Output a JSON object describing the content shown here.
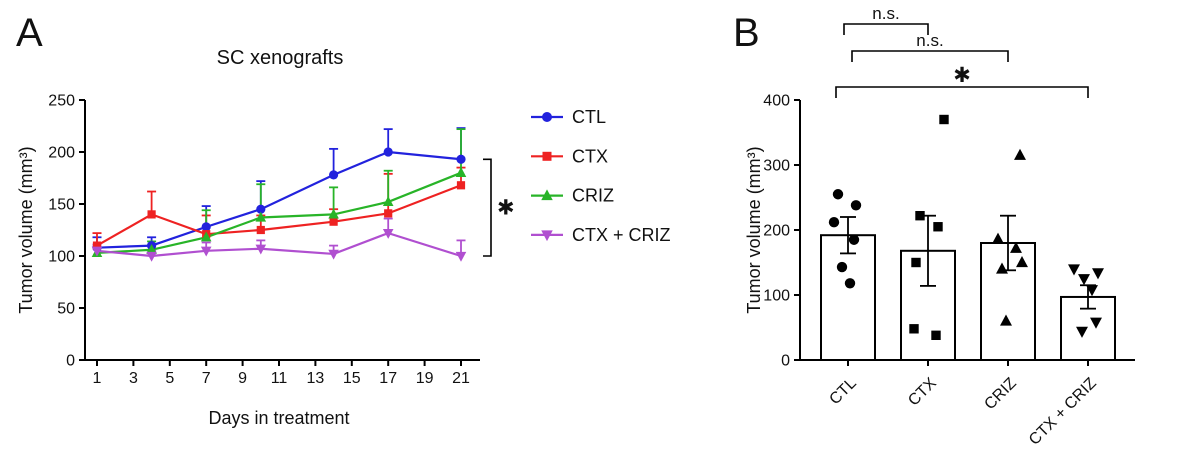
{
  "figure": {
    "panels": [
      {
        "label": "A"
      },
      {
        "label": "B"
      }
    ]
  },
  "chart_data": [
    {
      "type": "line",
      "title": "SC xenografts",
      "xlabel": "Days in treatment",
      "ylabel": "Tumor volume (mm³)",
      "x": [
        1,
        4,
        7,
        10,
        14,
        17,
        21
      ],
      "x_ticks": [
        1,
        3,
        5,
        7,
        9,
        11,
        13,
        15,
        17,
        19,
        21
      ],
      "ylim": [
        0,
        250
      ],
      "y_ticks": [
        0,
        50,
        100,
        150,
        200,
        250
      ],
      "grid": false,
      "legend_position": "right",
      "series": [
        {
          "name": "CTL",
          "color": "#2222dd",
          "marker": "circle",
          "values": [
            108,
            110,
            128,
            145,
            178,
            200,
            193
          ],
          "errors": [
            10,
            8,
            20,
            27,
            25,
            22,
            30
          ]
        },
        {
          "name": "CTX",
          "color": "#ee2222",
          "marker": "square",
          "values": [
            110,
            140,
            121,
            125,
            133,
            141,
            168
          ],
          "errors": [
            12,
            22,
            18,
            14,
            12,
            38,
            17
          ]
        },
        {
          "name": "CRIZ",
          "color": "#28b428",
          "marker": "triangle-up",
          "values": [
            103,
            106,
            118,
            137,
            140,
            152,
            180
          ],
          "errors": [
            5,
            8,
            26,
            32,
            26,
            30,
            42
          ]
        },
        {
          "name": "CTX + CRIZ",
          "color": "#b04fd0",
          "marker": "triangle-down",
          "values": [
            105,
            100,
            105,
            107,
            102,
            122,
            100
          ],
          "errors": [
            6,
            5,
            8,
            8,
            8,
            14,
            15
          ]
        }
      ],
      "significance": {
        "label": "✱",
        "from": "CTL",
        "to": "CTX + CRIZ"
      }
    },
    {
      "type": "bar",
      "title": "",
      "xlabel": "",
      "ylabel": "Tumor volume (mm³)",
      "categories": [
        "CTL",
        "CTX",
        "CRIZ",
        "CTX + CRIZ"
      ],
      "ylim": [
        0,
        400
      ],
      "y_ticks": [
        0,
        100,
        200,
        300,
        400
      ],
      "bar_fill": "#ffffff",
      "bar_stroke": "#000000",
      "values": [
        192,
        168,
        180,
        97
      ],
      "errors": [
        28,
        54,
        42,
        18
      ],
      "markers": [
        "circle",
        "square",
        "triangle-up",
        "triangle-down"
      ],
      "points": [
        [
          255,
          238,
          212,
          185,
          143,
          118
        ],
        [
          370,
          222,
          205,
          150,
          48,
          38
        ],
        [
          315,
          186,
          172,
          150,
          140,
          60
        ],
        [
          140,
          134,
          125,
          108,
          58,
          44
        ]
      ],
      "point_offsets": [
        [
          -10,
          8,
          -14,
          6,
          -6,
          2
        ],
        [
          16,
          -8,
          10,
          -12,
          -14,
          8
        ],
        [
          12,
          -10,
          8,
          14,
          -6,
          -2
        ],
        [
          -14,
          10,
          -4,
          4,
          8,
          -6
        ]
      ],
      "comparisons": [
        {
          "label": "n.s.",
          "from": "CTL",
          "to": "CTX"
        },
        {
          "label": "n.s.",
          "from": "CTL",
          "to": "CRIZ"
        },
        {
          "label": "✱",
          "from": "CTL",
          "to": "CTX + CRIZ"
        }
      ]
    }
  ]
}
